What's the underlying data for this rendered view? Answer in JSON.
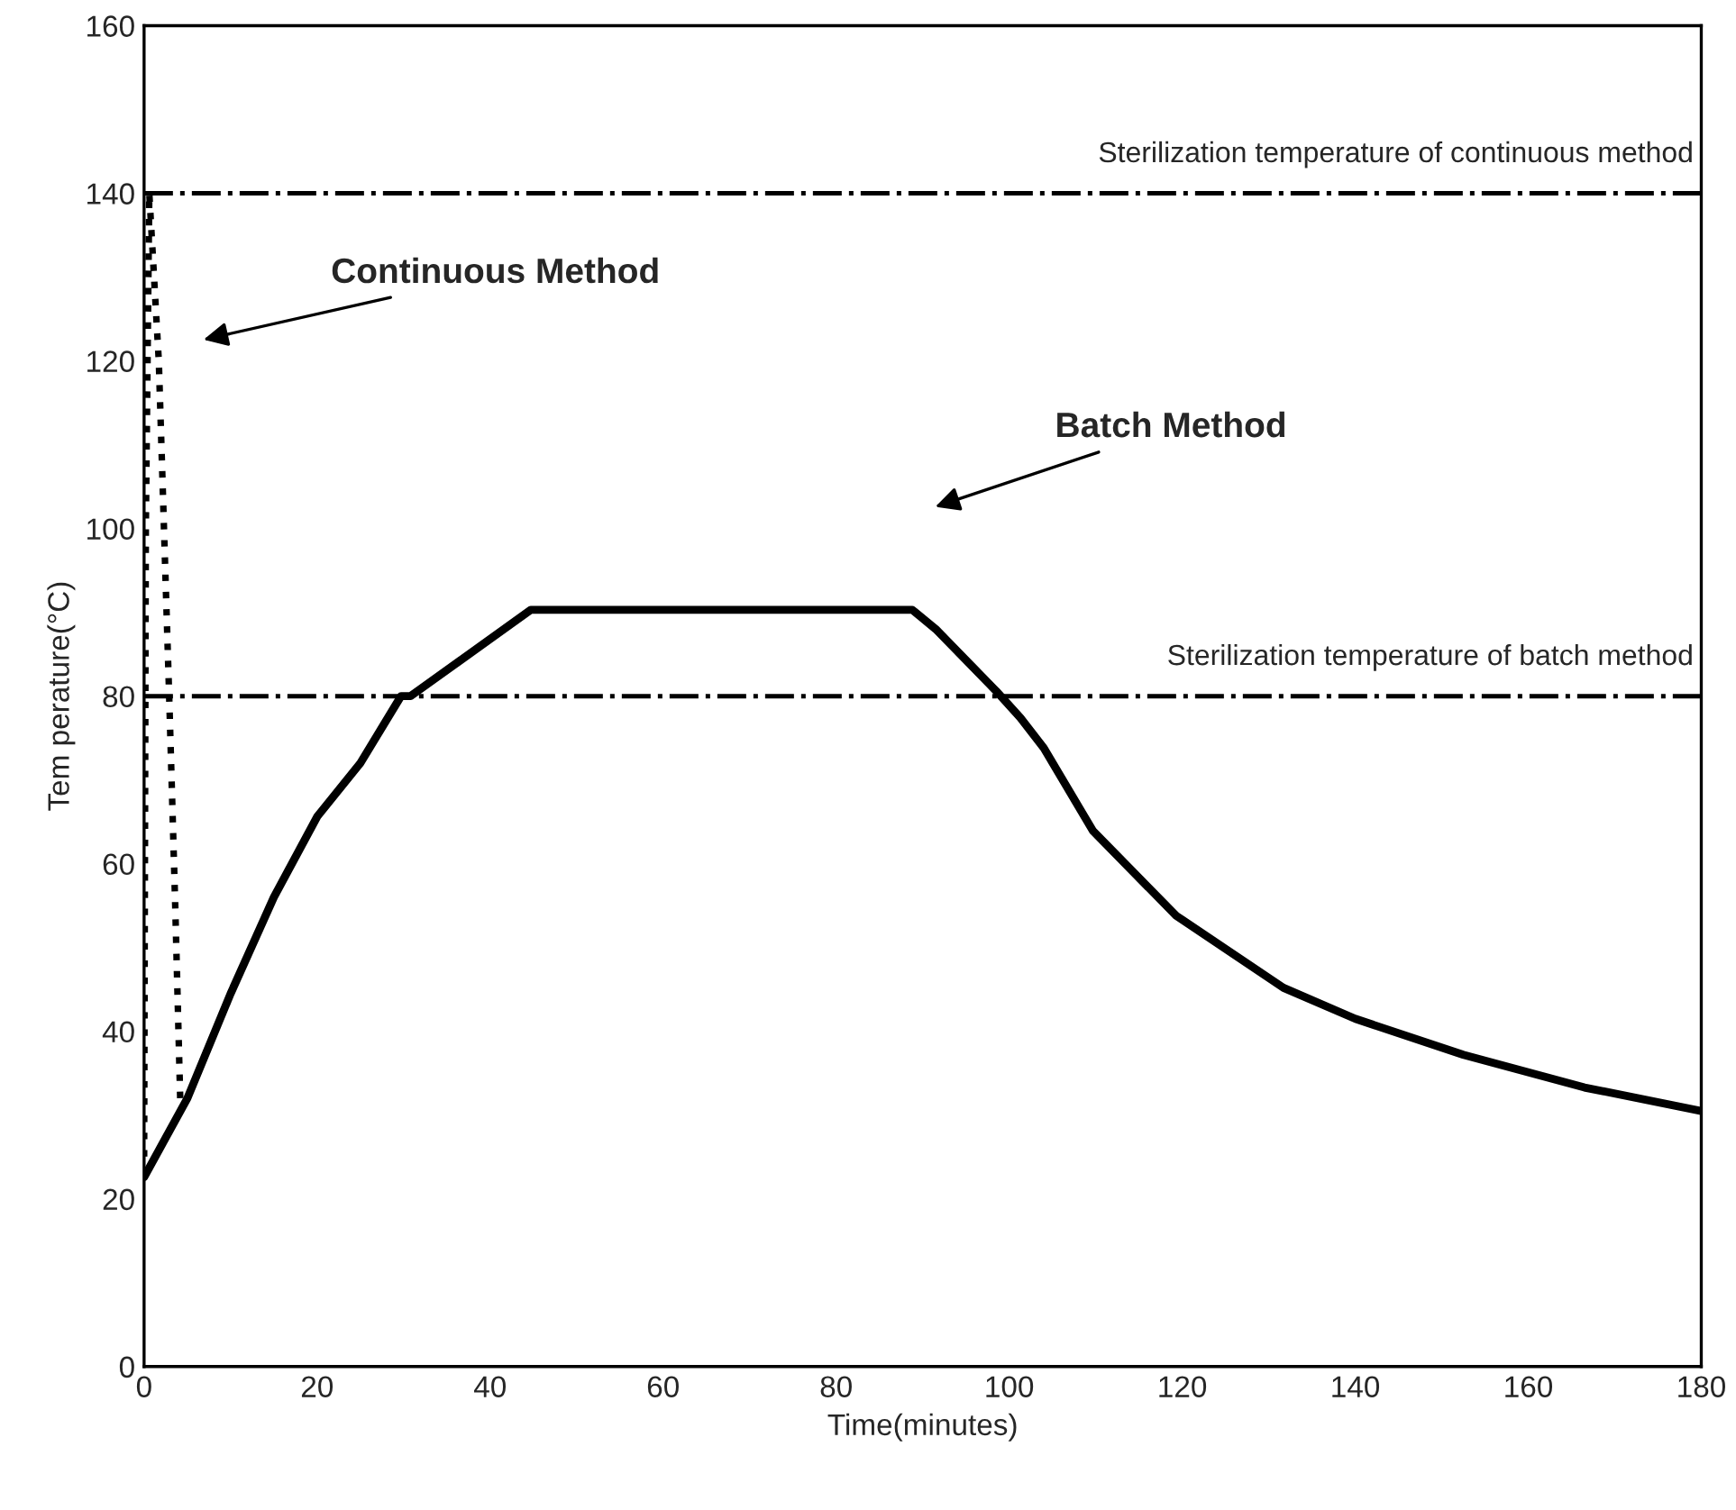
{
  "chart_data": {
    "type": "line",
    "xlabel": "Time(minutes)",
    "ylabel": "Tem perature(°C)",
    "xlim": [
      0,
      180
    ],
    "ylim": [
      0,
      160
    ],
    "xticks": [
      0,
      20,
      40,
      60,
      80,
      100,
      120,
      140,
      160,
      180
    ],
    "yticks": [
      0,
      20,
      40,
      60,
      80,
      100,
      120,
      140,
      160
    ],
    "grid": false,
    "marker": "none",
    "series": [
      {
        "color": "#000000",
        "line_style": "dotted",
        "x": [
          0,
          0.2,
          0.6,
          1.7,
          2.9,
          3.6,
          4.2
        ],
        "values": [
          23,
          100,
          140,
          120,
          80,
          55,
          31
        ]
      },
      {
        "color": "#000000",
        "line_style": "solid",
        "x": [
          0,
          5,
          10,
          15,
          20,
          25,
          29.7,
          30.8,
          38.9,
          44.7,
          60,
          80,
          88.8,
          91.5,
          98.5,
          101.3,
          104,
          109.7,
          119.3,
          131.7,
          140,
          152.5,
          166.5,
          180
        ],
        "values": [
          22.6,
          32,
          44.5,
          56,
          65.6,
          72,
          80,
          80,
          86,
          90.3,
          90.3,
          90.3,
          90.3,
          88,
          80.6,
          77.4,
          73.8,
          63.9,
          53.8,
          45.2,
          41.5,
          37.2,
          33.3,
          30.5
        ]
      }
    ],
    "ref_lines": [
      {
        "axis": "y",
        "value": 140,
        "label": "Sterilization temperature of continuous method",
        "line_style": "dashdot",
        "color": "#000000"
      },
      {
        "axis": "y",
        "value": 80,
        "label": "Sterilization temperature of batch method",
        "line_style": "dashdot",
        "color": "#000000"
      }
    ],
    "annotations": [
      "Continuous Method",
      "Batch Method"
    ]
  }
}
